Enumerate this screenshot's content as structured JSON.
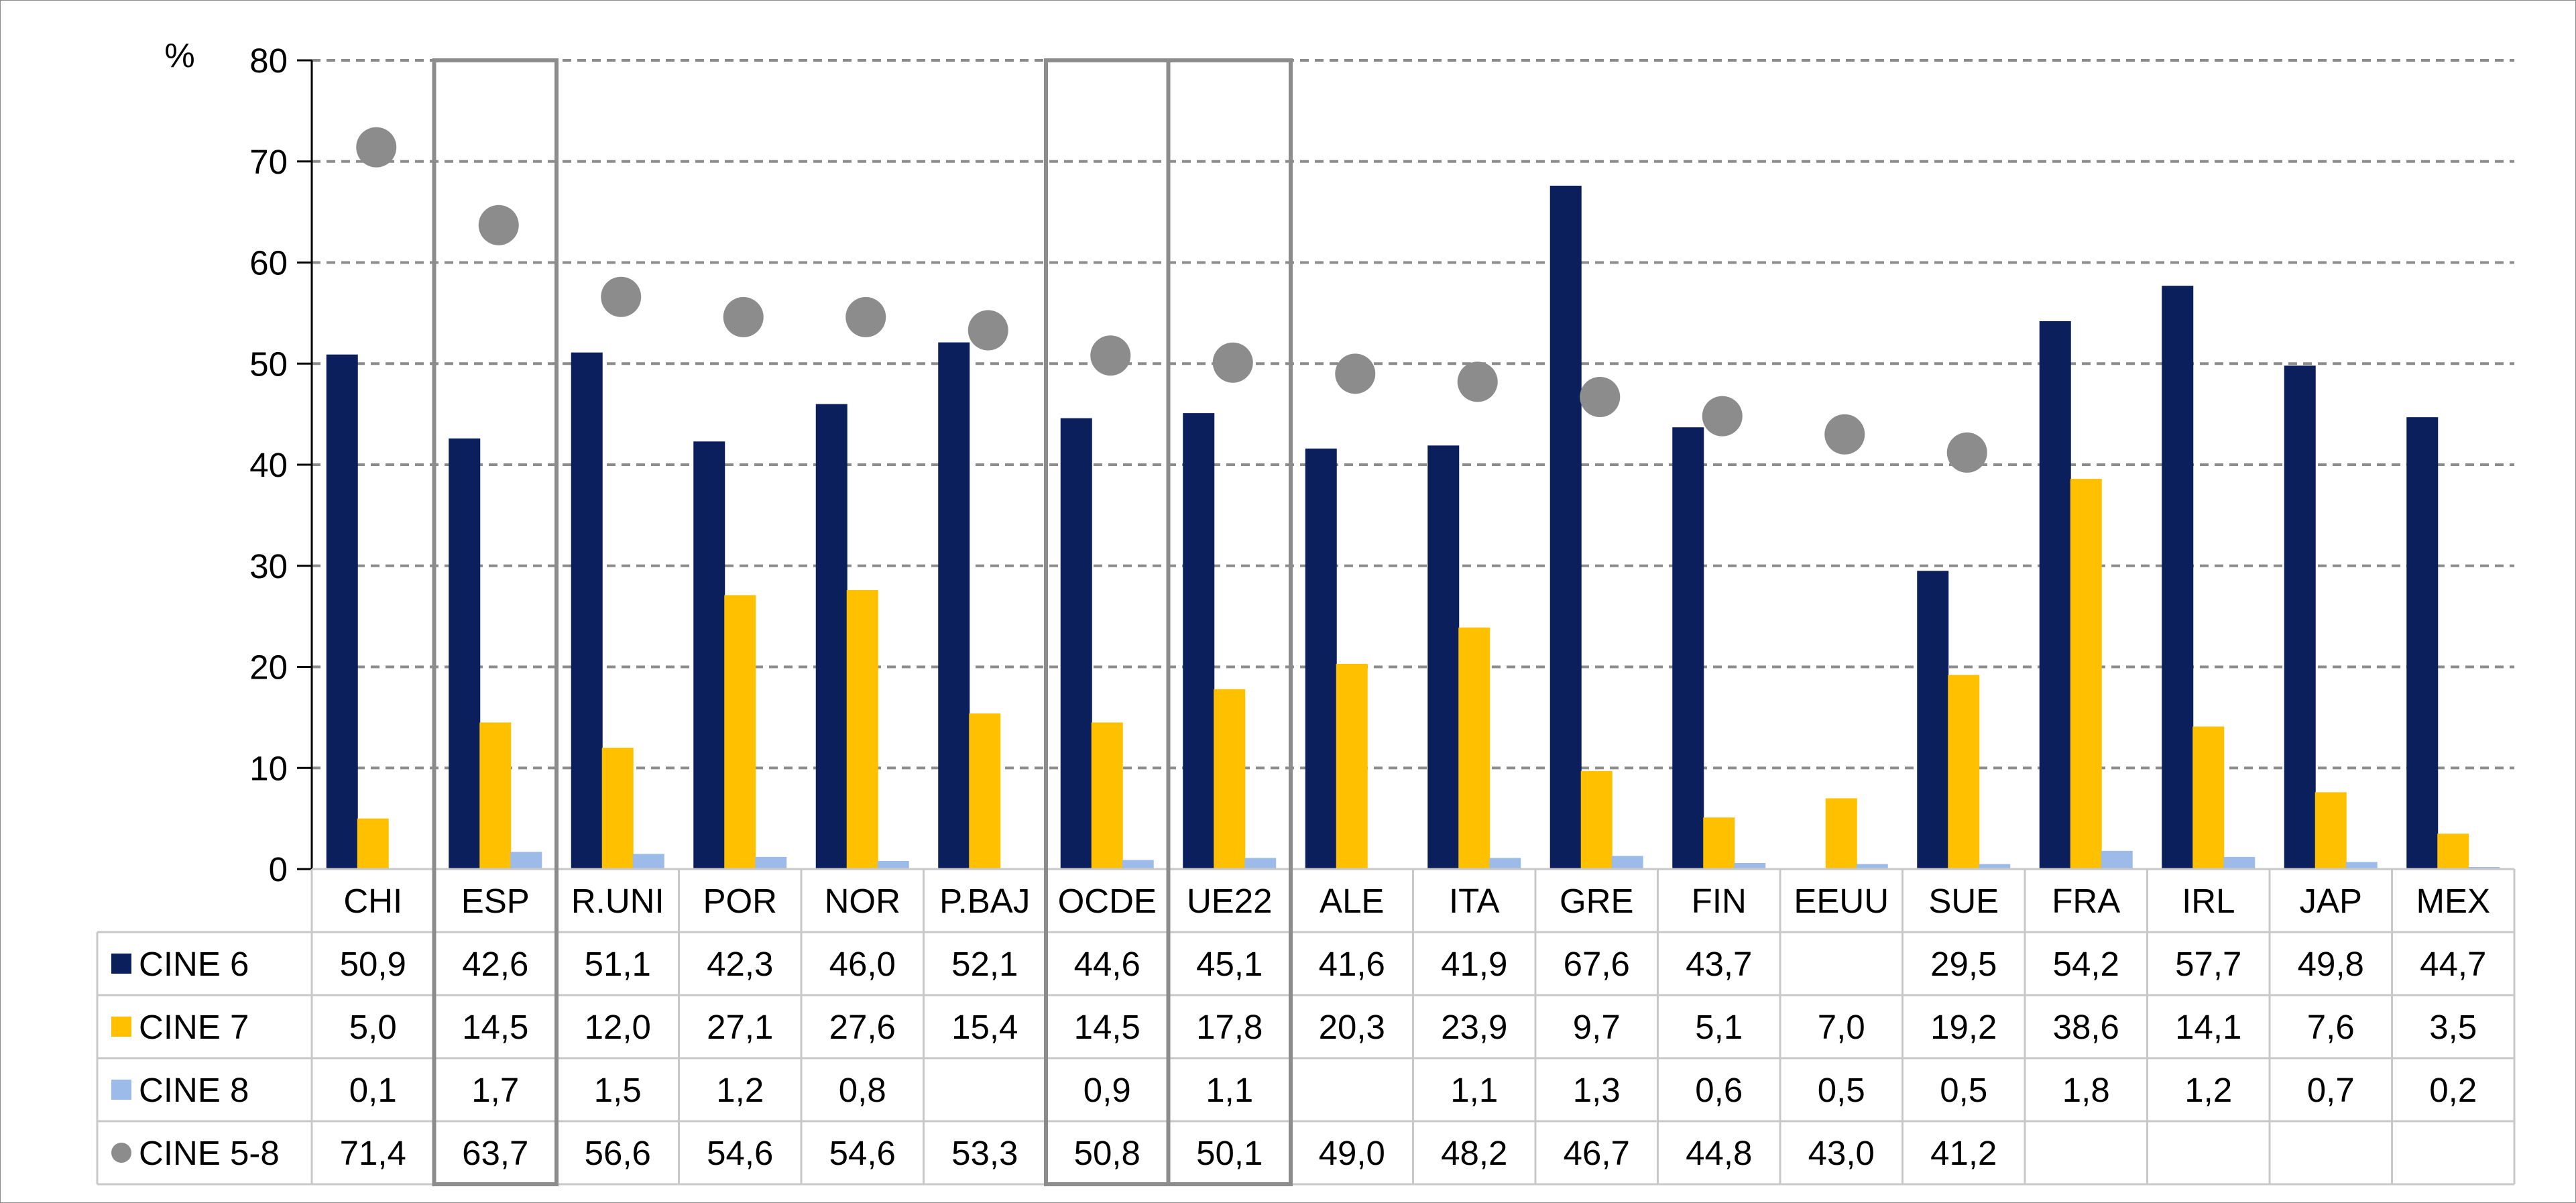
{
  "chart_data": {
    "type": "bar",
    "ylabel": "%",
    "ylim": [
      0,
      80
    ],
    "yticks": [
      "0",
      "10",
      "20",
      "30",
      "40",
      "50",
      "60",
      "70",
      "80"
    ],
    "categories": [
      "CHI",
      "ESP",
      "R.UNI",
      "POR",
      "NOR",
      "P.BAJ",
      "OCDE",
      "UE22",
      "ALE",
      "ITA",
      "GRE",
      "FIN",
      "EEUU",
      "SUE",
      "FRA",
      "IRL",
      "JAP",
      "MEX"
    ],
    "highlighted_categories": [
      "ESP",
      "OCDE",
      "UE22"
    ],
    "grid": true,
    "legend": "data-table-rows",
    "series": [
      {
        "name": "CINE 6",
        "kind": "bar",
        "color": "#0a1f5c",
        "values": [
          50.9,
          42.6,
          51.1,
          42.3,
          46.0,
          52.1,
          44.6,
          45.1,
          41.6,
          41.9,
          67.6,
          43.7,
          null,
          29.5,
          54.2,
          57.7,
          49.8,
          44.7
        ],
        "labels": [
          "50,9",
          "42,6",
          "51,1",
          "42,3",
          "46,0",
          "52,1",
          "44,6",
          "45,1",
          "41,6",
          "41,9",
          "67,6",
          "43,7",
          "",
          "29,5",
          "54,2",
          "57,7",
          "49,8",
          "44,7"
        ]
      },
      {
        "name": "CINE 7",
        "kind": "bar",
        "color": "#ffc000",
        "values": [
          5.0,
          14.5,
          12.0,
          27.1,
          27.6,
          15.4,
          14.5,
          17.8,
          20.3,
          23.9,
          9.7,
          5.1,
          7.0,
          19.2,
          38.6,
          14.1,
          7.6,
          3.5
        ],
        "labels": [
          "5,0",
          "14,5",
          "12,0",
          "27,1",
          "27,6",
          "15,4",
          "14,5",
          "17,8",
          "20,3",
          "23,9",
          "9,7",
          "5,1",
          "7,0",
          "19,2",
          "38,6",
          "14,1",
          "7,6",
          "3,5"
        ]
      },
      {
        "name": "CINE 8",
        "kind": "bar",
        "color": "#9dbbe8",
        "values": [
          0.1,
          1.7,
          1.5,
          1.2,
          0.8,
          null,
          0.9,
          1.1,
          null,
          1.1,
          1.3,
          0.6,
          0.5,
          0.5,
          1.8,
          1.2,
          0.7,
          0.2
        ],
        "labels": [
          "0,1",
          "1,7",
          "1,5",
          "1,2",
          "0,8",
          "",
          "0,9",
          "1,1",
          "",
          "1,1",
          "1,3",
          "0,6",
          "0,5",
          "0,5",
          "1,8",
          "1,2",
          "0,7",
          "0,2"
        ]
      },
      {
        "name": "CINE 5-8",
        "kind": "marker",
        "color": "#8c8c8c",
        "values": [
          71.4,
          63.7,
          56.6,
          54.6,
          54.6,
          53.3,
          50.8,
          50.1,
          49.0,
          48.2,
          46.7,
          44.8,
          43.0,
          41.2,
          null,
          null,
          null,
          null
        ],
        "labels": [
          "71,4",
          "63,7",
          "56,6",
          "54,6",
          "54,6",
          "53,3",
          "50,8",
          "50,1",
          "49,0",
          "48,2",
          "46,7",
          "44,8",
          "43,0",
          "41,2",
          "",
          "",
          "",
          ""
        ]
      }
    ]
  }
}
